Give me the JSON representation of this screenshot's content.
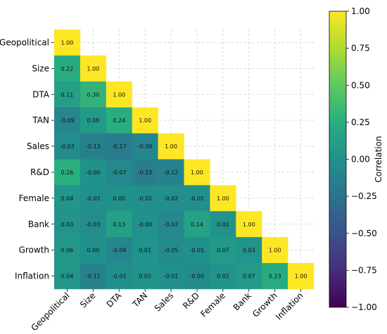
{
  "chart_data": {
    "type": "heatmap",
    "variables": [
      "Geopolitical",
      "Size",
      "DTA",
      "TAN",
      "Sales",
      "R&D",
      "Female",
      "Bank",
      "Growth",
      "Inflation"
    ],
    "matrix": [
      [
        1.0
      ],
      [
        0.22,
        1.0
      ],
      [
        0.11,
        0.3,
        1.0
      ],
      [
        -0.09,
        0.08,
        0.24,
        1.0
      ],
      [
        -0.03,
        -0.13,
        -0.17,
        -0.09,
        1.0
      ],
      [
        0.26,
        -0.0,
        -0.07,
        -0.15,
        -0.12,
        1.0
      ],
      [
        0.04,
        -0.01,
        0.0,
        -0.01,
        -0.02,
        -0.01,
        1.0
      ],
      [
        0.03,
        -0.03,
        0.13,
        -0.0,
        -0.07,
        0.14,
        0.01,
        1.0
      ],
      [
        0.06,
        0.0,
        -0.08,
        0.01,
        -0.05,
        -0.01,
        0.07,
        0.03,
        1.0
      ],
      [
        0.04,
        -0.11,
        -0.01,
        0.02,
        -0.01,
        -0.05,
        0.02,
        0.07,
        0.23,
        1.0
      ]
    ],
    "value_labels": [
      [
        "1.00"
      ],
      [
        "0.22",
        "1.00"
      ],
      [
        "0.11",
        "0.30",
        "1.00"
      ],
      [
        "-0.09",
        "0.08",
        "0.24",
        "1.00"
      ],
      [
        "-0.03",
        "-0.13",
        "-0.17",
        "-0.09",
        "1.00"
      ],
      [
        "0.26",
        "-0.00",
        "-0.07",
        "-0.15",
        "-0.12",
        "1.00"
      ],
      [
        "0.04",
        "-0.01",
        "0.00",
        "-0.01",
        "-0.02",
        "-0.01",
        "1.00"
      ],
      [
        "0.03",
        "-0.03",
        "0.13",
        "-0.00",
        "-0.07",
        "0.14",
        "0.01",
        "1.00"
      ],
      [
        "0.06",
        "0.00",
        "-0.08",
        "0.01",
        "-0.05",
        "-0.01",
        "0.07",
        "0.03",
        "1.00"
      ],
      [
        "0.04",
        "-0.11",
        "-0.01",
        "0.02",
        "-0.01",
        "-0.05",
        "0.02",
        "0.07",
        "0.23",
        "1.00"
      ]
    ],
    "colorbar": {
      "label": "Correlation",
      "range": [
        -1.0,
        1.0
      ],
      "ticks": [
        "1.00",
        "0.75",
        "0.50",
        "0.25",
        "0.00",
        "−0.25",
        "−0.50",
        "−0.75",
        "−1.00"
      ],
      "tick_values": [
        1.0,
        0.75,
        0.5,
        0.25,
        0.0,
        -0.25,
        -0.5,
        -0.75,
        -1.0
      ],
      "colormap": "viridis"
    },
    "grid": true,
    "lower_triangle_only": true
  }
}
